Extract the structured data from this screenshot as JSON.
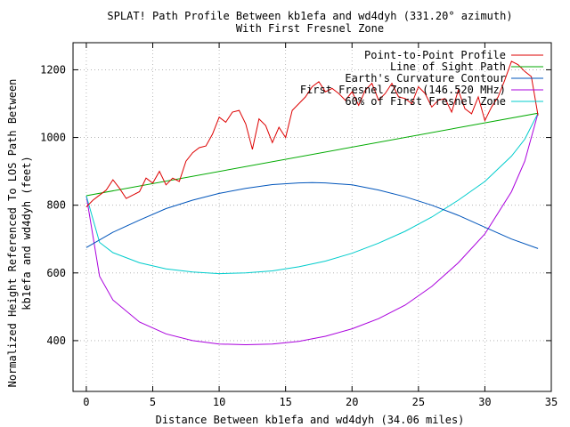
{
  "chart_data": {
    "type": "line",
    "title": "SPLAT! Path Profile Between kb1efa and wd4dyh (331.20° azimuth)",
    "subtitle": "With First Fresnel Zone",
    "xlabel": "Distance Between kb1efa and wd4dyh (34.06 miles)",
    "ylabel_line1": "Normalized Height Referenced To LOS Path Between",
    "ylabel_line2": "kb1efa and wd4dyh (feet)",
    "xlim": [
      -1,
      35
    ],
    "ylim": [
      250,
      1280
    ],
    "xticks": [
      0,
      5,
      10,
      15,
      20,
      25,
      30,
      35
    ],
    "yticks": [
      400,
      600,
      800,
      1000,
      1200
    ],
    "grid": true,
    "legend_position": "top-right",
    "series": [
      {
        "name": "Point-to-Point Profile",
        "color": "#dd0000",
        "x": [
          0,
          0.5,
          1,
          1.5,
          2,
          2.5,
          3,
          3.5,
          4,
          4.5,
          5,
          5.5,
          6,
          6.5,
          7,
          7.5,
          8,
          8.5,
          9,
          9.5,
          10,
          10.5,
          11,
          11.5,
          12,
          12.5,
          13,
          13.5,
          14,
          14.5,
          15,
          15.5,
          16,
          16.5,
          17,
          17.5,
          18,
          18.5,
          19,
          19.5,
          20,
          20.5,
          21,
          21.5,
          22,
          22.5,
          23,
          23.5,
          24,
          24.5,
          25,
          25.5,
          26,
          26.5,
          27,
          27.5,
          28,
          28.5,
          29,
          29.5,
          30,
          30.5,
          31,
          31.5,
          32,
          32.5,
          33,
          33.5,
          34
        ],
        "values": [
          795,
          815,
          830,
          845,
          875,
          850,
          820,
          830,
          840,
          880,
          865,
          900,
          860,
          880,
          870,
          930,
          955,
          970,
          975,
          1010,
          1060,
          1045,
          1075,
          1080,
          1040,
          965,
          1055,
          1035,
          985,
          1030,
          1000,
          1080,
          1100,
          1120,
          1150,
          1165,
          1135,
          1145,
          1130,
          1110,
          1135,
          1095,
          1140,
          1160,
          1110,
          1130,
          1160,
          1120,
          1115,
          1100,
          1150,
          1130,
          1090,
          1110,
          1115,
          1075,
          1140,
          1085,
          1070,
          1120,
          1050,
          1090,
          1120,
          1170,
          1225,
          1215,
          1195,
          1180,
          1065
        ]
      },
      {
        "name": "Line of Sight Path",
        "color": "#00aa00",
        "x": [
          0,
          34
        ],
        "values": [
          828,
          1072
        ]
      },
      {
        "name": "Earth's Curvature Contour",
        "color": "#0055bb",
        "x": [
          0,
          2,
          4,
          6,
          8,
          10,
          12,
          14,
          16,
          17,
          18,
          20,
          22,
          24,
          26,
          28,
          30,
          32,
          34
        ],
        "values": [
          675,
          720,
          756,
          790,
          815,
          835,
          850,
          861,
          866,
          867,
          866,
          860,
          845,
          825,
          800,
          770,
          735,
          700,
          672
        ]
      },
      {
        "name": "First Fresnel Zone (146.520 MHz)",
        "color": "#aa00dd",
        "x": [
          0,
          1,
          2,
          4,
          6,
          8,
          10,
          12,
          14,
          16,
          18,
          20,
          22,
          24,
          26,
          28,
          30,
          32,
          33,
          34
        ],
        "values": [
          828,
          590,
          520,
          455,
          420,
          400,
          390,
          388,
          390,
          398,
          413,
          435,
          465,
          505,
          560,
          630,
          715,
          840,
          930,
          1072
        ]
      },
      {
        "name": "60% of First Fresnel Zone",
        "color": "#00cccc",
        "x": [
          0,
          1,
          2,
          4,
          6,
          8,
          10,
          12,
          14,
          16,
          18,
          20,
          22,
          24,
          26,
          28,
          30,
          32,
          33,
          34
        ],
        "values": [
          828,
          690,
          660,
          630,
          612,
          603,
          598,
          600,
          606,
          618,
          635,
          658,
          688,
          723,
          765,
          815,
          870,
          945,
          995,
          1072
        ]
      }
    ]
  }
}
